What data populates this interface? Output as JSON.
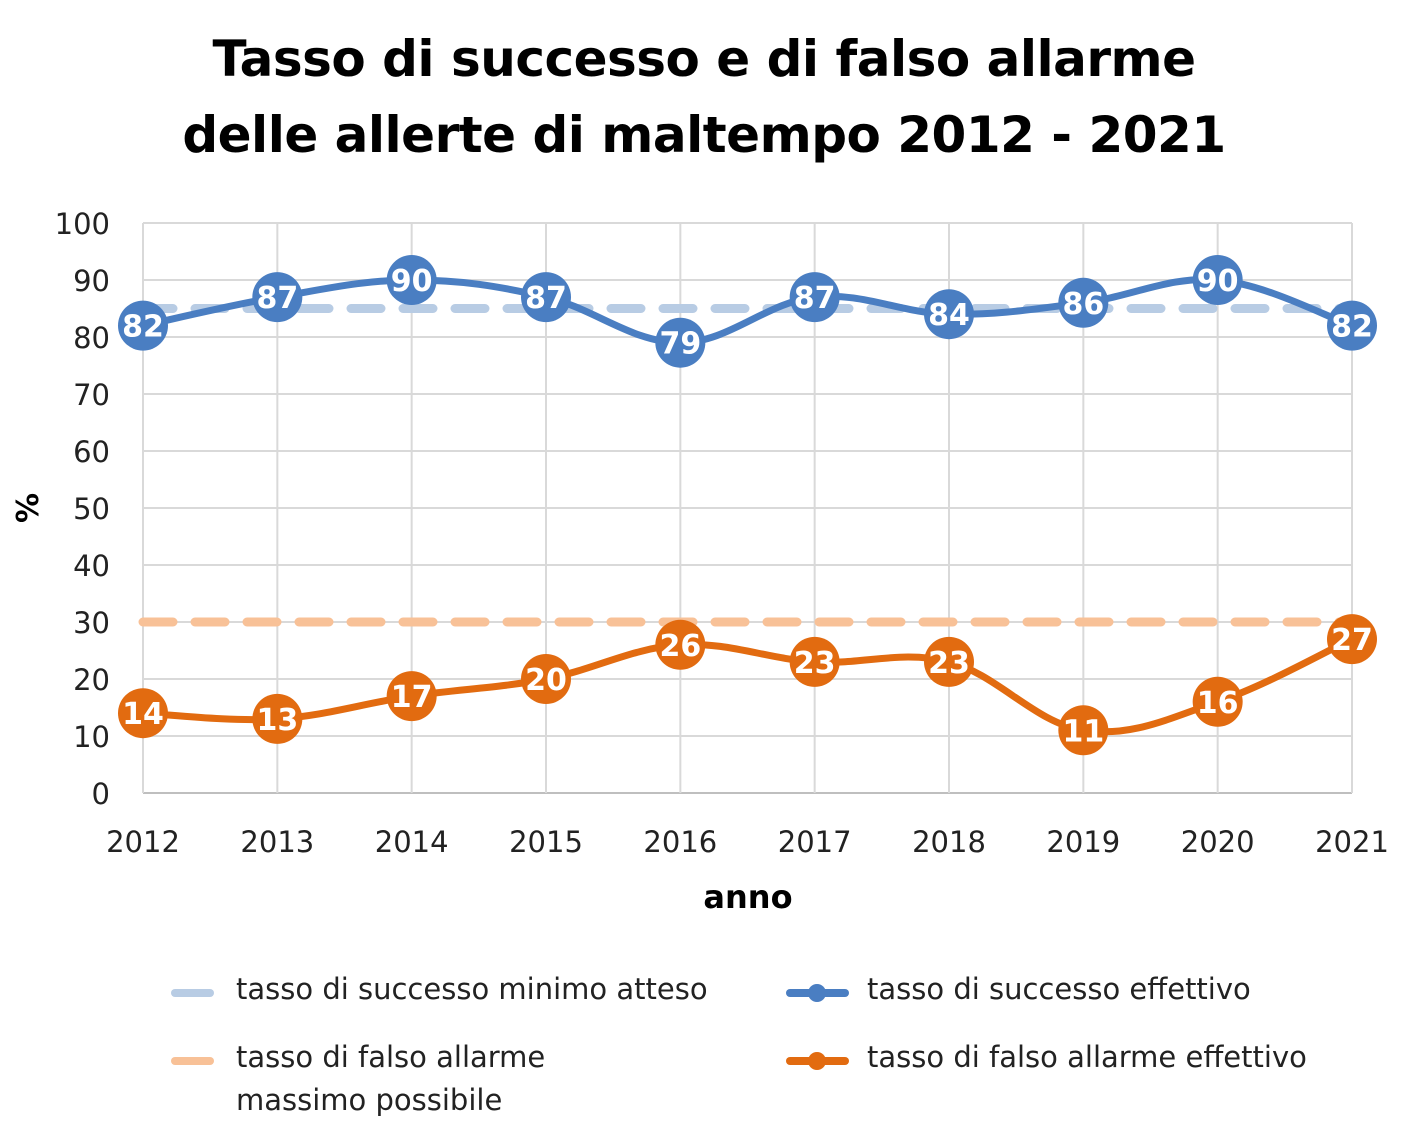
{
  "chart_data": {
    "type": "line",
    "title_line1": "Tasso di successo e di falso allarme",
    "title_line2": "delle allerte di maltempo 2012 - 2021",
    "xlabel": "anno",
    "ylabel": "%",
    "ylim": [
      0,
      100
    ],
    "yticks": [
      "0",
      "10",
      "20",
      "30",
      "40",
      "50",
      "60",
      "70",
      "80",
      "90",
      "100"
    ],
    "categories": [
      "2012",
      "2013",
      "2014",
      "2015",
      "2016",
      "2017",
      "2018",
      "2019",
      "2020",
      "2021"
    ],
    "grid": true,
    "legend_position": "bottom",
    "series": [
      {
        "name": "tasso di successo minimo atteso",
        "kind": "dashed-reference",
        "color": "#B8CCE4",
        "value": 85
      },
      {
        "name": "tasso di successo effettivo",
        "kind": "line-markers",
        "color": "#4A7EC2",
        "values": [
          82,
          87,
          90,
          87,
          79,
          87,
          84,
          86,
          90,
          82
        ],
        "labels": [
          "82",
          "87",
          "90",
          "87",
          "79",
          "87",
          "84",
          "86",
          "90",
          "82"
        ]
      },
      {
        "name_line1": "tasso di falso allarme",
        "name_line2": "massimo possibile",
        "kind": "dashed-reference",
        "color": "#F8C197",
        "value": 30
      },
      {
        "name": "tasso di falso allarme effettivo",
        "kind": "line-markers",
        "color": "#E26B10",
        "values": [
          14,
          13,
          17,
          20,
          26,
          23,
          23,
          11,
          16,
          27
        ],
        "labels": [
          "14",
          "13",
          "17",
          "20",
          "26",
          "23",
          "23",
          "11",
          "16",
          "27"
        ]
      }
    ]
  }
}
